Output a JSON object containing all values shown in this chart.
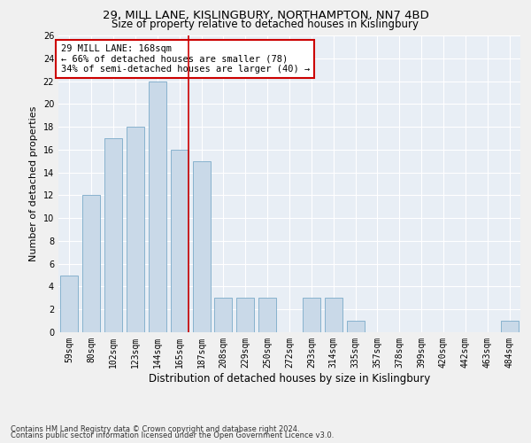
{
  "title1": "29, MILL LANE, KISLINGBURY, NORTHAMPTON, NN7 4BD",
  "title2": "Size of property relative to detached houses in Kislingbury",
  "xlabel": "Distribution of detached houses by size in Kislingbury",
  "ylabel": "Number of detached properties",
  "categories": [
    "59sqm",
    "80sqm",
    "102sqm",
    "123sqm",
    "144sqm",
    "165sqm",
    "187sqm",
    "208sqm",
    "229sqm",
    "250sqm",
    "272sqm",
    "293sqm",
    "314sqm",
    "335sqm",
    "357sqm",
    "378sqm",
    "399sqm",
    "420sqm",
    "442sqm",
    "463sqm",
    "484sqm"
  ],
  "values": [
    5,
    12,
    17,
    18,
    22,
    16,
    15,
    3,
    3,
    3,
    0,
    3,
    3,
    1,
    0,
    0,
    0,
    0,
    0,
    0,
    1
  ],
  "bar_color": "#c9d9e8",
  "bar_edge_color": "#7aaac8",
  "bar_width": 0.8,
  "vline_x": 5.4,
  "vline_color": "#cc0000",
  "annotation_text": "29 MILL LANE: 168sqm\n← 66% of detached houses are smaller (78)\n34% of semi-detached houses are larger (40) →",
  "annotation_box_color": "#ffffff",
  "annotation_box_edge": "#cc0000",
  "ylim": [
    0,
    26
  ],
  "yticks": [
    0,
    2,
    4,
    6,
    8,
    10,
    12,
    14,
    16,
    18,
    20,
    22,
    24,
    26
  ],
  "background_color": "#e8eef5",
  "grid_color": "#ffffff",
  "footer1": "Contains HM Land Registry data © Crown copyright and database right 2024.",
  "footer2": "Contains public sector information licensed under the Open Government Licence v3.0.",
  "title1_fontsize": 9.5,
  "title2_fontsize": 8.5,
  "tick_fontsize": 7,
  "ylabel_fontsize": 8,
  "xlabel_fontsize": 8.5,
  "footer_fontsize": 6,
  "annotation_fontsize": 7.5
}
